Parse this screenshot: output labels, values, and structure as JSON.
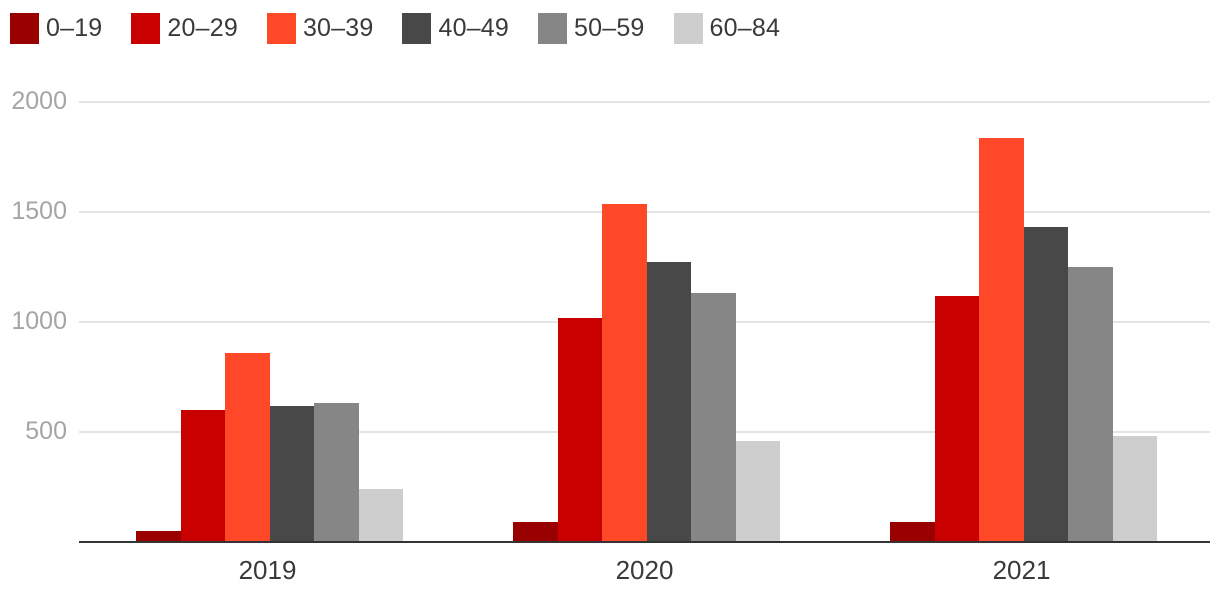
{
  "chart_data": {
    "type": "bar",
    "title": "",
    "xlabel": "",
    "ylabel": "",
    "categories": [
      "2019",
      "2020",
      "2021"
    ],
    "series": [
      {
        "name": "0–19",
        "color": "#990000",
        "values": [
          50,
          90,
          90
        ]
      },
      {
        "name": "20–29",
        "color": "#c80000",
        "values": [
          600,
          1020,
          1120
        ]
      },
      {
        "name": "30–39",
        "color": "#ff4827",
        "values": [
          860,
          1535,
          1835
        ]
      },
      {
        "name": "40–49",
        "color": "#484848",
        "values": [
          620,
          1275,
          1430
        ]
      },
      {
        "name": "50–59",
        "color": "#868686",
        "values": [
          630,
          1130,
          1250
        ]
      },
      {
        "name": "60–84",
        "color": "#cecece",
        "values": [
          240,
          460,
          480
        ]
      }
    ],
    "ylim": [
      0,
      2000
    ],
    "yticks": [
      500,
      1000,
      1500,
      2000
    ],
    "grid": true,
    "legend_position": "top-left"
  },
  "colors": {
    "background": "#ffffff",
    "gridline": "#e4e4e4",
    "axis_line": "#333333",
    "y_tick_text": "#a5a5a5",
    "category_text": "#3a3a3a",
    "legend_text": "#3a3a3a"
  }
}
